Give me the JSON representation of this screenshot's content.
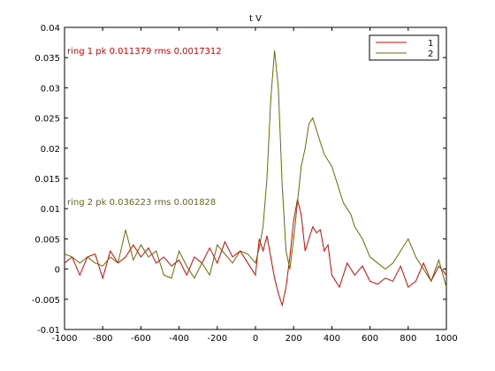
{
  "chart_data": {
    "type": "line",
    "title": "t V",
    "xlim": [
      -1000,
      1000
    ],
    "ylim": [
      -0.01,
      0.04
    ],
    "x_ticks": [
      "-1000",
      "-800",
      "-600",
      "-400",
      "-200",
      "0",
      "200",
      "400",
      "600",
      "800",
      "1000"
    ],
    "y_ticks": [
      "-0.01",
      "-0.005",
      "0",
      "0.005",
      "0.01",
      "0.015",
      "0.02",
      "0.025",
      "0.03",
      "0.035",
      "0.04"
    ],
    "x_tick_values": [
      -1000,
      -800,
      -600,
      -400,
      -200,
      0,
      200,
      400,
      600,
      800,
      1000
    ],
    "y_tick_values": [
      -0.01,
      -0.005,
      0,
      0.005,
      0.01,
      0.015,
      0.02,
      0.025,
      0.03,
      0.035,
      0.04
    ],
    "grid": false,
    "legend_position": "top-right",
    "legend": [
      "1",
      "2"
    ],
    "annotations": [
      {
        "text": "ring 2 pk 0.036223 rms 0.001828",
        "color": "#6b6b00"
      },
      {
        "text": "ring 1 pk 0.011379 rms 0.0017312",
        "color": "#e00000"
      }
    ],
    "series": [
      {
        "name": "1",
        "color": "#e00000",
        "x": [
          -1000,
          -960,
          -920,
          -880,
          -840,
          -800,
          -760,
          -720,
          -680,
          -640,
          -600,
          -560,
          -520,
          -480,
          -440,
          -400,
          -360,
          -320,
          -280,
          -240,
          -200,
          -160,
          -120,
          -80,
          -40,
          0,
          20,
          40,
          60,
          80,
          100,
          120,
          140,
          160,
          180,
          200,
          220,
          240,
          260,
          280,
          300,
          320,
          340,
          360,
          380,
          400,
          440,
          480,
          520,
          560,
          600,
          640,
          680,
          720,
          760,
          800,
          840,
          880,
          920,
          960,
          1000
        ],
        "y": [
          0.001,
          0.002,
          -0.001,
          0.002,
          0.0025,
          -0.0015,
          0.003,
          0.001,
          0.002,
          0.004,
          0.002,
          0.0035,
          0.001,
          0.002,
          0.0005,
          0.0015,
          -0.001,
          0.002,
          0.001,
          0.0035,
          0.001,
          0.0045,
          0.002,
          0.003,
          0.001,
          -0.001,
          0.005,
          0.003,
          0.0055,
          0.002,
          -0.0015,
          -0.004,
          -0.006,
          -0.003,
          0.002,
          0.008,
          0.0115,
          0.009,
          0.003,
          0.005,
          0.007,
          0.006,
          0.0065,
          0.003,
          0.004,
          -0.001,
          -0.003,
          0.001,
          -0.001,
          0.0005,
          -0.002,
          -0.0025,
          -0.0015,
          -0.002,
          0.0005,
          -0.003,
          -0.002,
          0.001,
          -0.002,
          0.0005,
          -0.001
        ]
      },
      {
        "name": "2",
        "color": "#6b6b00",
        "x": [
          -1000,
          -960,
          -920,
          -880,
          -840,
          -800,
          -760,
          -720,
          -680,
          -640,
          -600,
          -560,
          -520,
          -480,
          -440,
          -400,
          -360,
          -320,
          -280,
          -240,
          -200,
          -160,
          -120,
          -80,
          -40,
          0,
          20,
          40,
          60,
          80,
          100,
          120,
          140,
          160,
          180,
          200,
          220,
          240,
          260,
          280,
          300,
          320,
          340,
          360,
          380,
          400,
          420,
          440,
          460,
          480,
          500,
          520,
          560,
          600,
          640,
          680,
          720,
          760,
          800,
          840,
          880,
          920,
          960,
          1000
        ],
        "y": [
          0.0025,
          0.002,
          0.001,
          0.002,
          0.001,
          0.0005,
          0.002,
          0.001,
          0.0065,
          0.0015,
          0.004,
          0.002,
          0.003,
          -0.001,
          -0.0015,
          0.003,
          0.0005,
          -0.0015,
          0.001,
          -0.001,
          0.004,
          0.0025,
          0.001,
          0.003,
          0.0025,
          0.001,
          0.0035,
          0.007,
          0.015,
          0.028,
          0.0362,
          0.03,
          0.014,
          0.003,
          0.0,
          0.005,
          0.011,
          0.017,
          0.02,
          0.024,
          0.025,
          0.023,
          0.021,
          0.019,
          0.018,
          0.017,
          0.015,
          0.013,
          0.011,
          0.01,
          0.009,
          0.007,
          0.005,
          0.002,
          0.001,
          0.0,
          0.001,
          0.003,
          0.005,
          0.002,
          0.0,
          -0.002,
          0.0015,
          -0.003
        ]
      }
    ]
  }
}
